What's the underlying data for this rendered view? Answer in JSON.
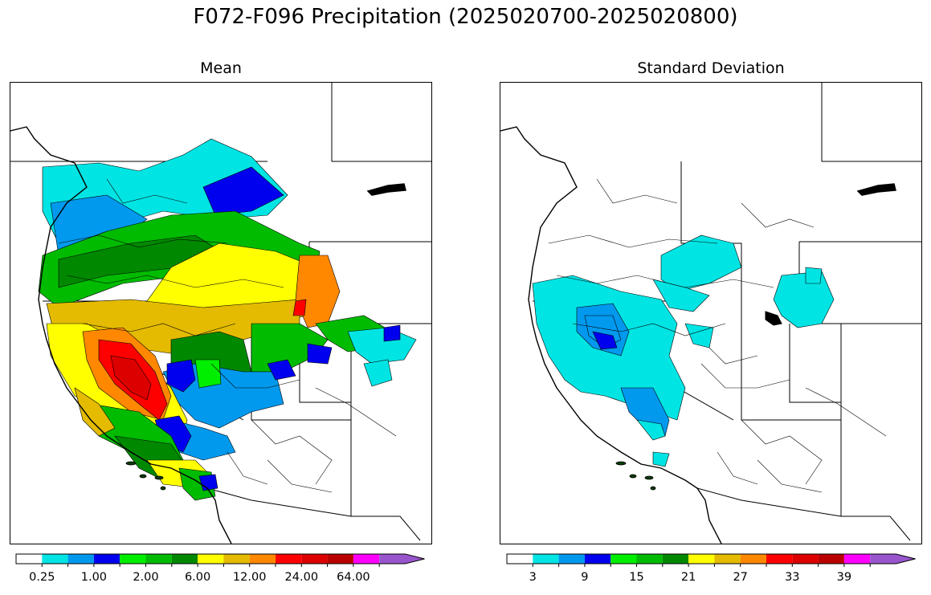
{
  "title": "F072-F096 Precipitation (2025020700-2025020800)",
  "panels": [
    {
      "title": "Mean"
    },
    {
      "title": "Standard Deviation"
    }
  ],
  "colorbar_colors": [
    "#ffffff",
    "#00e4e4",
    "#0099ee",
    "#0000ee",
    "#00ee00",
    "#00bb00",
    "#008800",
    "#ffff00",
    "#e4bb00",
    "#ff8800",
    "#ff0000",
    "#dd0000",
    "#bb0000",
    "#ff00ff",
    "#9955cc"
  ],
  "colorbars": [
    {
      "ticks": [
        "0.25",
        "1.00",
        "2.00",
        "6.00",
        "12.00",
        "24.00",
        "64.00"
      ]
    },
    {
      "ticks": [
        "3",
        "9",
        "15",
        "21",
        "27",
        "33",
        "39"
      ]
    }
  ]
}
